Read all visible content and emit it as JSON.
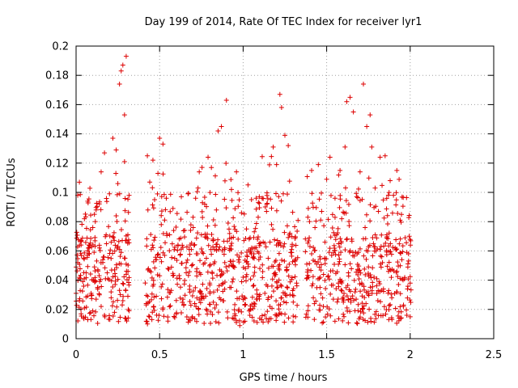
{
  "chart_data": {
    "type": "scatter",
    "title": "Day 199 of 2014, Rate Of TEC Index for receiver lyr1",
    "xlabel": "GPS time / hours",
    "ylabel": "ROTI / TECUs",
    "xlim": [
      0,
      2.5
    ],
    "ylim": [
      0,
      0.2
    ],
    "xticks": [
      0,
      0.5,
      1,
      1.5,
      2,
      2.5
    ],
    "xtick_labels": [
      "0",
      "0.5",
      "1",
      "1.5",
      "2",
      "2.5"
    ],
    "yticks": [
      0,
      0.02,
      0.04,
      0.06,
      0.08,
      0.1,
      0.12,
      0.14,
      0.16,
      0.18,
      0.2
    ],
    "ytick_labels": [
      "0",
      "0.02",
      "0.04",
      "0.06",
      "0.08",
      "0.1",
      "0.12",
      "0.14",
      "0.16",
      "0.18",
      "0.2"
    ],
    "grid": true,
    "marker": "+",
    "marker_color": "#dd0000",
    "gaps": [
      [
        0.32,
        0.41
      ],
      [
        1.33,
        1.37
      ]
    ],
    "series": [
      {
        "name": "ROTI",
        "points": [
          [
            0.0,
            0.031
          ],
          [
            0.01,
            0.098
          ],
          [
            0.01,
            0.052
          ],
          [
            0.02,
            0.107
          ],
          [
            0.02,
            0.026
          ],
          [
            0.03,
            0.064
          ],
          [
            0.03,
            0.017
          ],
          [
            0.04,
            0.039
          ],
          [
            0.05,
            0.082
          ],
          [
            0.05,
            0.021
          ],
          [
            0.06,
            0.045
          ],
          [
            0.07,
            0.094
          ],
          [
            0.07,
            0.013
          ],
          [
            0.08,
            0.058
          ],
          [
            0.09,
            0.031
          ],
          [
            0.1,
            0.076
          ],
          [
            0.1,
            0.019
          ],
          [
            0.11,
            0.049
          ],
          [
            0.12,
            0.088
          ],
          [
            0.12,
            0.027
          ],
          [
            0.13,
            0.035
          ],
          [
            0.14,
            0.062
          ],
          [
            0.15,
            0.114
          ],
          [
            0.15,
            0.022
          ],
          [
            0.16,
            0.054
          ],
          [
            0.17,
            0.127
          ],
          [
            0.17,
            0.016
          ],
          [
            0.18,
            0.071
          ],
          [
            0.19,
            0.041
          ],
          [
            0.2,
            0.099
          ],
          [
            0.21,
            0.028
          ],
          [
            0.21,
            0.066
          ],
          [
            0.22,
            0.137
          ],
          [
            0.23,
            0.018
          ],
          [
            0.23,
            0.047
          ],
          [
            0.24,
            0.129
          ],
          [
            0.24,
            0.084
          ],
          [
            0.25,
            0.106
          ],
          [
            0.26,
            0.033
          ],
          [
            0.26,
            0.174
          ],
          [
            0.27,
            0.183
          ],
          [
            0.27,
            0.059
          ],
          [
            0.28,
            0.187
          ],
          [
            0.28,
            0.026
          ],
          [
            0.29,
            0.153
          ],
          [
            0.29,
            0.121
          ],
          [
            0.3,
            0.193
          ],
          [
            0.3,
            0.044
          ],
          [
            0.31,
            0.029
          ],
          [
            0.31,
            0.071
          ],
          [
            0.42,
            0.024
          ],
          [
            0.43,
            0.088
          ],
          [
            0.43,
            0.047
          ],
          [
            0.44,
            0.015
          ],
          [
            0.45,
            0.061
          ],
          [
            0.46,
            0.122
          ],
          [
            0.46,
            0.036
          ],
          [
            0.47,
            0.095
          ],
          [
            0.48,
            0.054
          ],
          [
            0.48,
            0.029
          ],
          [
            0.49,
            0.113
          ],
          [
            0.5,
            0.137
          ],
          [
            0.5,
            0.043
          ],
          [
            0.51,
            0.078
          ],
          [
            0.52,
            0.133
          ],
          [
            0.52,
            0.021
          ],
          [
            0.53,
            0.057
          ],
          [
            0.54,
            0.096
          ],
          [
            0.55,
            0.012
          ],
          [
            0.55,
            0.048
          ],
          [
            0.56,
            0.071
          ],
          [
            0.57,
            0.033
          ],
          [
            0.58,
            0.089
          ],
          [
            0.59,
            0.055
          ],
          [
            0.6,
            0.017
          ],
          [
            0.61,
            0.064
          ],
          [
            0.62,
            0.041
          ],
          [
            0.63,
            0.097
          ],
          [
            0.64,
            0.027
          ],
          [
            0.65,
            0.074
          ],
          [
            0.66,
            0.052
          ],
          [
            0.67,
            0.099
          ],
          [
            0.68,
            0.036
          ],
          [
            0.69,
            0.061
          ],
          [
            0.7,
            0.083
          ],
          [
            0.71,
            0.024
          ],
          [
            0.72,
            0.058
          ],
          [
            0.73,
            0.103
          ],
          [
            0.74,
            0.045
          ],
          [
            0.75,
            0.071
          ],
          [
            0.76,
            0.029
          ],
          [
            0.77,
            0.092
          ],
          [
            0.78,
            0.055
          ],
          [
            0.79,
            0.124
          ],
          [
            0.8,
            0.038
          ],
          [
            0.81,
            0.117
          ],
          [
            0.82,
            0.068
          ],
          [
            0.83,
            0.021
          ],
          [
            0.84,
            0.088
          ],
          [
            0.85,
            0.142
          ],
          [
            0.86,
            0.047
          ],
          [
            0.87,
            0.145
          ],
          [
            0.88,
            0.026
          ],
          [
            0.89,
            0.062
          ],
          [
            0.9,
            0.163
          ],
          [
            0.91,
            0.079
          ],
          [
            0.92,
            0.035
          ],
          [
            0.93,
            0.102
          ],
          [
            0.94,
            0.053
          ],
          [
            0.95,
            0.017
          ],
          [
            0.96,
            0.114
          ],
          [
            0.97,
            0.068
          ],
          [
            0.98,
            0.009
          ],
          [
            0.99,
            0.086
          ],
          [
            1.0,
            0.042
          ],
          [
            1.01,
            0.023
          ],
          [
            1.02,
            0.075
          ],
          [
            1.03,
            0.051
          ],
          [
            1.04,
            0.016
          ],
          [
            1.05,
            0.095
          ],
          [
            1.06,
            0.036
          ],
          [
            1.07,
            0.062
          ],
          [
            1.08,
            0.027
          ],
          [
            1.09,
            0.083
          ],
          [
            1.1,
            0.048
          ],
          [
            1.11,
            0.013
          ],
          [
            1.12,
            0.066
          ],
          [
            1.13,
            0.031
          ],
          [
            1.14,
            0.087
          ],
          [
            1.15,
            0.055
          ],
          [
            1.16,
            0.022
          ],
          [
            1.17,
            0.078
          ],
          [
            1.18,
            0.131
          ],
          [
            1.19,
            0.043
          ],
          [
            1.2,
            0.119
          ],
          [
            1.21,
            0.064
          ],
          [
            1.22,
            0.167
          ],
          [
            1.23,
            0.028
          ],
          [
            1.23,
            0.158
          ],
          [
            1.24,
            0.099
          ],
          [
            1.25,
            0.139
          ],
          [
            1.26,
            0.047
          ],
          [
            1.27,
            0.132
          ],
          [
            1.28,
            0.072
          ],
          [
            1.29,
            0.061
          ],
          [
            1.3,
            0.025
          ],
          [
            1.31,
            0.053
          ],
          [
            1.32,
            0.038
          ],
          [
            1.38,
            0.041
          ],
          [
            1.39,
            0.089
          ],
          [
            1.4,
            0.063
          ],
          [
            1.41,
            0.115
          ],
          [
            1.42,
            0.028
          ],
          [
            1.43,
            0.076
          ],
          [
            1.44,
            0.051
          ],
          [
            1.45,
            0.119
          ],
          [
            1.46,
            0.035
          ],
          [
            1.47,
            0.087
          ],
          [
            1.48,
            0.022
          ],
          [
            1.49,
            0.066
          ],
          [
            1.5,
            0.109
          ],
          [
            1.51,
            0.043
          ],
          [
            1.52,
            0.124
          ],
          [
            1.53,
            0.057
          ],
          [
            1.54,
            0.027
          ],
          [
            1.55,
            0.096
          ],
          [
            1.56,
            0.071
          ],
          [
            1.57,
            0.038
          ],
          [
            1.58,
            0.115
          ],
          [
            1.59,
            0.082
          ],
          [
            1.6,
            0.025
          ],
          [
            1.61,
            0.131
          ],
          [
            1.62,
            0.162
          ],
          [
            1.63,
            0.045
          ],
          [
            1.64,
            0.165
          ],
          [
            1.65,
            0.068
          ],
          [
            1.66,
            0.155
          ],
          [
            1.67,
            0.032
          ],
          [
            1.68,
            0.097
          ],
          [
            1.69,
            0.059
          ],
          [
            1.7,
            0.114
          ],
          [
            1.71,
            0.038
          ],
          [
            1.72,
            0.174
          ],
          [
            1.73,
            0.076
          ],
          [
            1.74,
            0.145
          ],
          [
            1.75,
            0.049
          ],
          [
            1.76,
            0.153
          ],
          [
            1.77,
            0.131
          ],
          [
            1.78,
            0.065
          ],
          [
            1.79,
            0.103
          ],
          [
            1.8,
            0.041
          ],
          [
            1.81,
            0.087
          ],
          [
            1.82,
            0.124
          ],
          [
            1.83,
            0.056
          ],
          [
            1.84,
            0.034
          ],
          [
            1.85,
            0.125
          ],
          [
            1.86,
            0.071
          ],
          [
            1.87,
            0.046
          ],
          [
            1.88,
            0.108
          ],
          [
            1.89,
            0.028
          ],
          [
            1.9,
            0.098
          ],
          [
            1.91,
            0.062
          ],
          [
            1.92,
            0.115
          ],
          [
            1.93,
            0.037
          ],
          [
            1.94,
            0.081
          ],
          [
            1.95,
            0.054
          ],
          [
            1.96,
            0.023
          ],
          [
            1.97,
            0.069
          ],
          [
            1.98,
            0.016
          ],
          [
            1.99,
            0.058
          ],
          [
            2.0,
            0.038
          ],
          [
            2.0,
            0.015
          ]
        ]
      }
    ]
  }
}
